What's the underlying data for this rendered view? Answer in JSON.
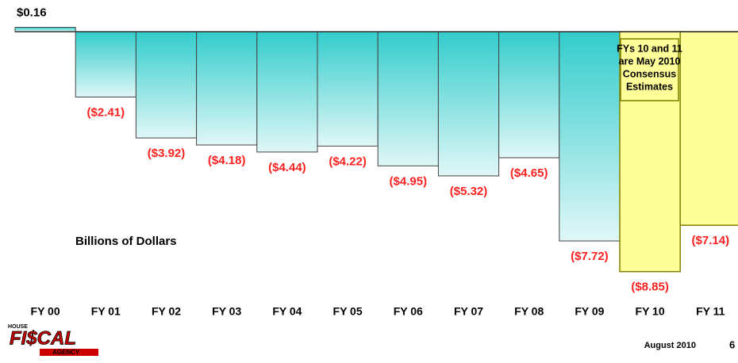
{
  "chart_data": {
    "type": "bar",
    "categories": [
      "FY 00",
      "FY 01",
      "FY 02",
      "FY 03",
      "FY 04",
      "FY 05",
      "FY 06",
      "FY 07",
      "FY 08",
      "FY 09",
      "FY 10",
      "FY 11"
    ],
    "values": [
      0.16,
      -2.41,
      -3.92,
      -4.18,
      -4.44,
      -4.22,
      -4.95,
      -5.32,
      -4.65,
      -7.72,
      -8.85,
      -7.14
    ],
    "value_labels": [
      "$0.16",
      "($2.41)",
      "($3.92)",
      "($4.18)",
      "($4.44)",
      "($4.22)",
      "($4.95)",
      "($5.32)",
      "($4.65)",
      "($7.72)",
      "($8.85)",
      "($7.14)"
    ],
    "colors": [
      "#33cccc",
      "#33cccc",
      "#33cccc",
      "#33cccc",
      "#33cccc",
      "#33cccc",
      "#33cccc",
      "#33cccc",
      "#33cccc",
      "#33cccc",
      "#ffff99",
      "#ffff99"
    ],
    "axis_label": "Billions of Dollars",
    "annotation": [
      "FYs 10 and 11",
      "are May 2010",
      "Consensus",
      "Estimates"
    ]
  },
  "footer": {
    "logo": [
      "HOUSE",
      "FI$CAL",
      "AGENCY"
    ],
    "date": "August 2010",
    "page": "6"
  }
}
